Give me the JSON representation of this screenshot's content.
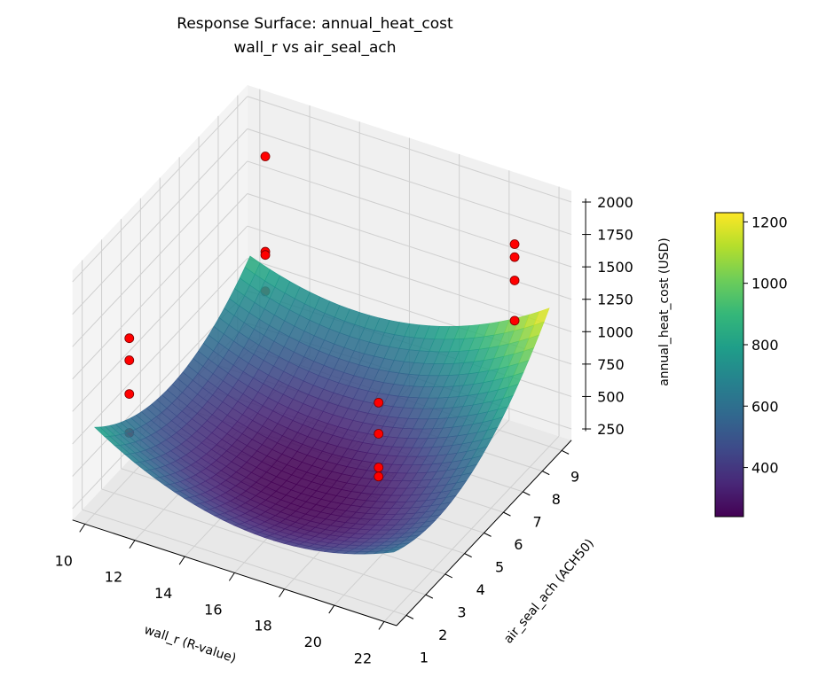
{
  "chart_data": {
    "type": "surface3d",
    "title": "Response Surface: annual_heat_cost",
    "subtitle": "wall_r vs air_seal_ach",
    "xlabel": "wall_r (R-value)",
    "ylabel": "air_seal_ach (ACH50)",
    "zlabel": "annual_heat_cost (USD)",
    "xlim": [
      9.5,
      22.5
    ],
    "ylim": [
      0.5,
      9.5
    ],
    "zlim": [
      163,
      2087
    ],
    "xticks": [
      10,
      12,
      14,
      16,
      18,
      20,
      22
    ],
    "yticks": [
      1,
      2,
      3,
      4,
      5,
      6,
      7,
      8,
      9
    ],
    "zticks": [
      250,
      500,
      750,
      1000,
      1250,
      1500,
      1750,
      2000
    ],
    "grid": true,
    "colormap": "viridis",
    "surface_model": {
      "form": "z = c0 + a*(x-16)^2 + b*(y-4)^2 + c*(x-16)*(y-4)",
      "c0": 230,
      "a": 8.6,
      "b": 20.6,
      "c": 5.83,
      "x_range": [
        10,
        22
      ],
      "y_range": [
        1,
        9
      ]
    },
    "scatter": {
      "color": "#ff0000",
      "points": [
        {
          "x": 11,
          "y": 1.5,
          "z": 1500
        },
        {
          "x": 11,
          "y": 1.5,
          "z": 1330
        },
        {
          "x": 11,
          "y": 1.5,
          "z": 1070
        },
        {
          "x": 11,
          "y": 1.5,
          "z": 770
        },
        {
          "x": 11,
          "y": 8.5,
          "z": 1790
        },
        {
          "x": 11,
          "y": 8.5,
          "z": 1055
        },
        {
          "x": 11,
          "y": 8.5,
          "z": 1030
        },
        {
          "x": 11,
          "y": 8.5,
          "z": 750
        },
        {
          "x": 21,
          "y": 1.5,
          "z": 1630
        },
        {
          "x": 21,
          "y": 1.5,
          "z": 1390
        },
        {
          "x": 21,
          "y": 1.5,
          "z": 1130
        },
        {
          "x": 21,
          "y": 1.5,
          "z": 1060
        },
        {
          "x": 21,
          "y": 8.5,
          "z": 1740
        },
        {
          "x": 21,
          "y": 8.5,
          "z": 1640
        },
        {
          "x": 21,
          "y": 8.5,
          "z": 1460
        },
        {
          "x": 21,
          "y": 8.5,
          "z": 1150
        }
      ]
    },
    "colorbar": {
      "vmin": 240,
      "vmax": 1230,
      "ticks": [
        400,
        600,
        800,
        1000,
        1200
      ],
      "placement": "right"
    }
  }
}
